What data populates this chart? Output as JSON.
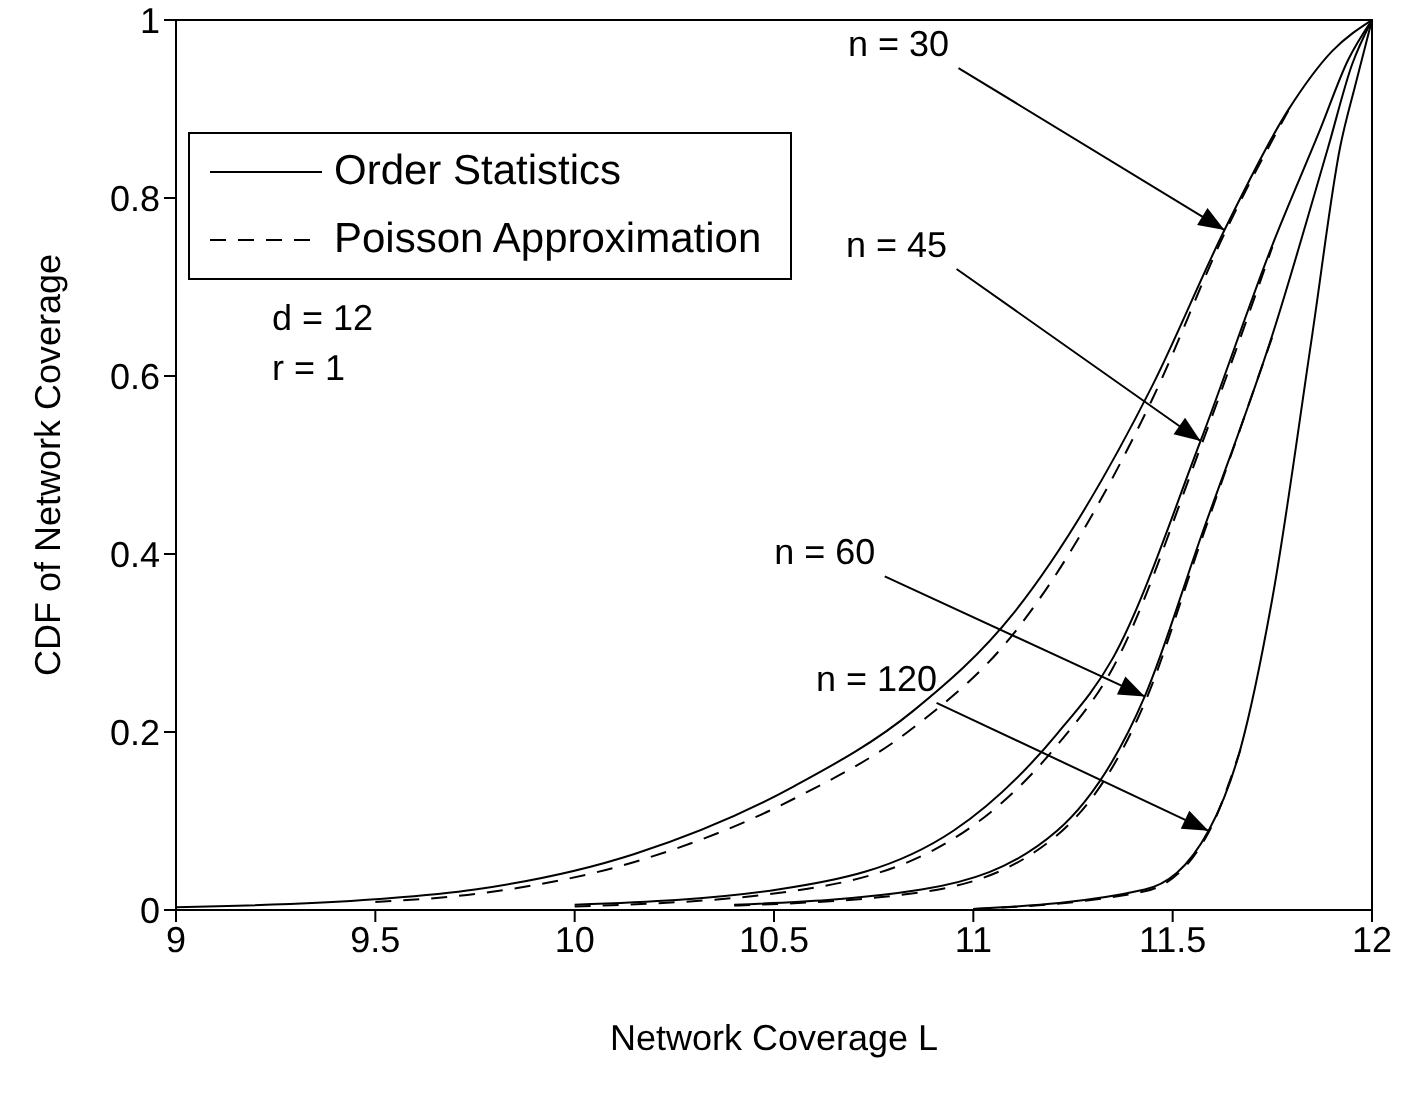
{
  "chart_data": {
    "type": "line",
    "xlabel": "Network Coverage L",
    "ylabel": "CDF of Network Coverage",
    "xlim": [
      9,
      12
    ],
    "ylim": [
      0,
      1
    ],
    "xticks": [
      9,
      9.5,
      10,
      10.5,
      11,
      11.5,
      12
    ],
    "yticks": [
      0,
      0.2,
      0.4,
      0.6,
      0.8,
      1
    ],
    "legend": "top left",
    "marker": "none",
    "series": [
      {
        "name": "Order Statistics",
        "color": "#000000",
        "line_style": "solid",
        "x": [
          9,
          9.5,
          9.75,
          10.15,
          10.55,
          10.85,
          11.1,
          11.45,
          11.63,
          11.79,
          11.9,
          12
        ],
        "values": [
          0.003,
          0.012,
          0.023,
          0.063,
          0.139,
          0.224,
          0.333,
          0.59,
          0.764,
          0.899,
          0.965,
          1
        ]
      },
      {
        "name": "Poisson Approximation",
        "color": "#000000",
        "line_style": "dashed",
        "x": [
          9.5,
          9.75,
          10.15,
          10.55,
          10.85,
          11.1,
          11.45,
          11.63,
          11.79
        ],
        "values": [
          0.009,
          0.018,
          0.054,
          0.125,
          0.205,
          0.31,
          0.575,
          0.76,
          0.898
        ]
      },
      {
        "color": "#000000",
        "line_style": "solid",
        "x": [
          10,
          10.51,
          10.95,
          11.21,
          11.35,
          11.57,
          11.75,
          11.87,
          11.94,
          12
        ],
        "values": [
          0.006,
          0.023,
          0.089,
          0.198,
          0.283,
          0.527,
          0.747,
          0.877,
          0.955,
          1
        ]
      },
      {
        "color": "#000000",
        "line_style": "dashed",
        "x": [
          10,
          10.51,
          10.95,
          11.21,
          11.35,
          11.57,
          11.75
        ],
        "values": [
          0.004,
          0.019,
          0.08,
          0.185,
          0.272,
          0.52,
          0.745
        ]
      },
      {
        "color": "#000000",
        "line_style": "solid",
        "x": [
          10.4,
          10.87,
          11.21,
          11.43,
          11.57,
          11.75,
          11.89,
          11.95,
          12
        ],
        "values": [
          0.006,
          0.023,
          0.089,
          0.24,
          0.418,
          0.646,
          0.857,
          0.95,
          1
        ]
      },
      {
        "color": "#000000",
        "line_style": "dashed",
        "x": [
          10.4,
          10.87,
          11.21,
          11.43,
          11.57,
          11.75
        ],
        "values": [
          0.005,
          0.02,
          0.084,
          0.233,
          0.413,
          0.644
        ]
      },
      {
        "color": "#000000",
        "line_style": "solid",
        "x": [
          11,
          11.43,
          11.59,
          11.67,
          11.75,
          11.85,
          11.92,
          11.96,
          12
        ],
        "values": [
          0.001,
          0.023,
          0.089,
          0.181,
          0.35,
          0.646,
          0.857,
          0.93,
          1
        ]
      },
      {
        "color": "#000000",
        "line_style": "dashed",
        "x": [
          11,
          11.43,
          11.59,
          11.67
        ],
        "values": [
          0.001,
          0.021,
          0.087,
          0.18
        ]
      }
    ],
    "annotations": [
      {
        "text": "n = 30",
        "x": 11.63,
        "y": 0.764
      },
      {
        "text": "n = 45",
        "x": 11.57,
        "y": 0.527
      },
      {
        "text": "n = 60",
        "x": 11.43,
        "y": 0.24
      },
      {
        "text": "n = 120",
        "x": 11.59,
        "y": 0.089
      },
      "d = 12",
      "r = 1"
    ]
  }
}
